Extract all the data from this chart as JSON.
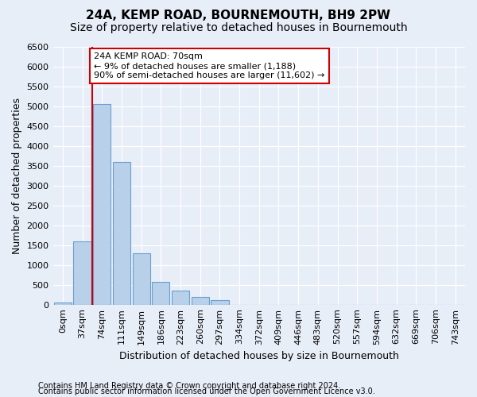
{
  "title": "24A, KEMP ROAD, BOURNEMOUTH, BH9 2PW",
  "subtitle": "Size of property relative to detached houses in Bournemouth",
  "xlabel": "Distribution of detached houses by size in Bournemouth",
  "ylabel": "Number of detached properties",
  "footer_line1": "Contains HM Land Registry data © Crown copyright and database right 2024.",
  "footer_line2": "Contains public sector information licensed under the Open Government Licence v3.0.",
  "bar_labels": [
    "0sqm",
    "37sqm",
    "74sqm",
    "111sqm",
    "149sqm",
    "186sqm",
    "223sqm",
    "260sqm",
    "297sqm",
    "334sqm",
    "372sqm",
    "409sqm",
    "446sqm",
    "483sqm",
    "520sqm",
    "557sqm",
    "594sqm",
    "632sqm",
    "669sqm",
    "706sqm",
    "743sqm"
  ],
  "bar_values": [
    50,
    1600,
    5050,
    3600,
    1300,
    580,
    350,
    200,
    120,
    0,
    0,
    0,
    0,
    0,
    0,
    0,
    0,
    0,
    0,
    0,
    0
  ],
  "bar_color": "#b8d0ea",
  "bar_edge_color": "#6a9fd0",
  "annotation_text": "24A KEMP ROAD: 70sqm\n← 9% of detached houses are smaller (1,188)\n90% of semi-detached houses are larger (11,602) →",
  "annotation_box_color": "#ffffff",
  "annotation_box_edge": "#cc0000",
  "vline_color": "#cc0000",
  "ylim": [
    0,
    6500
  ],
  "yticks": [
    0,
    500,
    1000,
    1500,
    2000,
    2500,
    3000,
    3500,
    4000,
    4500,
    5000,
    5500,
    6000,
    6500
  ],
  "background_color": "#e8eef8",
  "grid_color": "#ffffff",
  "title_fontsize": 11,
  "subtitle_fontsize": 10,
  "axis_label_fontsize": 9,
  "tick_fontsize": 8,
  "annotation_fontsize": 8,
  "footer_fontsize": 7
}
